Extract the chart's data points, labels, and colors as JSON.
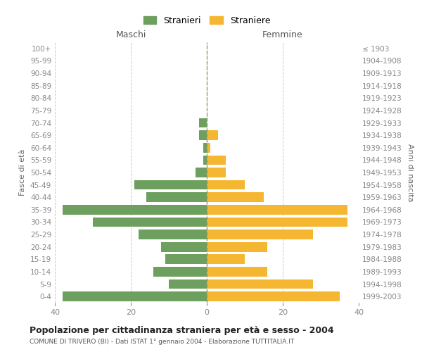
{
  "age_groups": [
    "0-4",
    "5-9",
    "10-14",
    "15-19",
    "20-24",
    "25-29",
    "30-34",
    "35-39",
    "40-44",
    "45-49",
    "50-54",
    "55-59",
    "60-64",
    "65-69",
    "70-74",
    "75-79",
    "80-84",
    "85-89",
    "90-94",
    "95-99",
    "100+"
  ],
  "birth_years": [
    "1999-2003",
    "1994-1998",
    "1989-1993",
    "1984-1988",
    "1979-1983",
    "1974-1978",
    "1969-1973",
    "1964-1968",
    "1959-1963",
    "1954-1958",
    "1949-1953",
    "1944-1948",
    "1939-1943",
    "1934-1938",
    "1929-1933",
    "1924-1928",
    "1919-1923",
    "1914-1918",
    "1909-1913",
    "1904-1908",
    "≤ 1903"
  ],
  "males": [
    38,
    10,
    14,
    11,
    12,
    18,
    30,
    38,
    16,
    19,
    3,
    1,
    1,
    2,
    2,
    0,
    0,
    0,
    0,
    0,
    0
  ],
  "females": [
    35,
    28,
    16,
    10,
    16,
    28,
    37,
    37,
    15,
    10,
    5,
    5,
    1,
    3,
    0,
    0,
    0,
    0,
    0,
    0,
    0
  ],
  "male_color": "#6d9f5e",
  "female_color": "#f5b731",
  "background_color": "#ffffff",
  "grid_color": "#cccccc",
  "title": "Popolazione per cittadinanza straniera per età e sesso - 2004",
  "subtitle": "COMUNE DI TRIVERO (BI) - Dati ISTAT 1° gennaio 2004 - Elaborazione TUTTITALIA.IT",
  "xlabel_left": "Maschi",
  "xlabel_right": "Femmine",
  "ylabel_left": "Fasce di età",
  "ylabel_right": "Anni di nascita",
  "legend_male": "Stranieri",
  "legend_female": "Straniere",
  "xlim": 40,
  "tick_color": "#888888"
}
